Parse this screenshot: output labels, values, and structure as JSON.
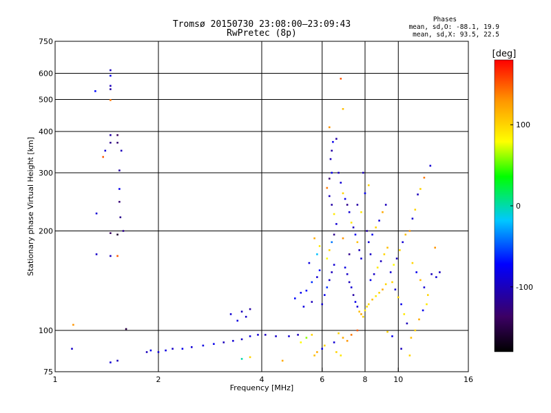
{
  "chart_data": {
    "type": "scatter",
    "title_line1": "Tromsø 20150730 23:08:00–23:09:43",
    "title_line2": "RwPretec (8p)",
    "phase_box": {
      "heading": "Phases",
      "line1": "mean, sd,O: -88.1, 19.9",
      "line2": "mean, sd,X:  93.5, 22.5"
    },
    "xlabel": "Frequency [MHz]",
    "ylabel": "Stationary phase Virtual Height [km]",
    "x_scale": "log",
    "y_scale": "log",
    "xlim": [
      1,
      16
    ],
    "ylim": [
      75,
      750
    ],
    "x_ticks": [
      1,
      2,
      4,
      6,
      8,
      10,
      16
    ],
    "y_ticks": [
      75,
      100,
      200,
      300,
      400,
      500,
      600,
      750
    ],
    "x_grid": [
      2,
      4,
      6,
      8,
      10
    ],
    "y_grid": [
      100,
      200,
      300,
      400,
      500,
      600
    ],
    "colorbar": {
      "label": "[deg]",
      "range": [
        -180,
        180
      ],
      "ticks": [
        100,
        0,
        -100
      ],
      "colors": [
        "#000000",
        "#3c0064",
        "#0000ff",
        "#00c8ff",
        "#00ff00",
        "#ffff00",
        "#ff9600",
        "#ff0000"
      ]
    },
    "points": [
      [
        1.12,
        88,
        -95
      ],
      [
        1.13,
        104,
        130
      ],
      [
        1.31,
        530,
        -70
      ],
      [
        1.32,
        226,
        -90
      ],
      [
        1.32,
        170,
        -95
      ],
      [
        1.38,
        335,
        150
      ],
      [
        1.4,
        350,
        -90
      ],
      [
        1.45,
        613,
        -100
      ],
      [
        1.45,
        590,
        -80
      ],
      [
        1.45,
        550,
        -100
      ],
      [
        1.45,
        537,
        -110
      ],
      [
        1.45,
        498,
        140
      ],
      [
        1.45,
        390,
        -110
      ],
      [
        1.45,
        370,
        -120
      ],
      [
        1.45,
        197,
        -140
      ],
      [
        1.45,
        168,
        -100
      ],
      [
        1.45,
        80,
        -90
      ],
      [
        1.52,
        390,
        -140
      ],
      [
        1.52,
        370,
        -130
      ],
      [
        1.52,
        195,
        -160
      ],
      [
        1.52,
        168,
        150
      ],
      [
        1.52,
        81,
        -100
      ],
      [
        1.54,
        305,
        -110
      ],
      [
        1.54,
        268,
        -80
      ],
      [
        1.54,
        245,
        -130
      ],
      [
        1.55,
        220,
        -120
      ],
      [
        1.56,
        350,
        -100
      ],
      [
        1.58,
        200,
        -120
      ],
      [
        1.61,
        101,
        -150
      ],
      [
        1.85,
        86,
        -100
      ],
      [
        1.9,
        87,
        -80
      ],
      [
        2.0,
        86,
        -90
      ],
      [
        2.1,
        87,
        -85
      ],
      [
        2.2,
        88,
        -95
      ],
      [
        2.35,
        88,
        -80
      ],
      [
        2.5,
        89,
        -90
      ],
      [
        2.7,
        90,
        -85
      ],
      [
        2.9,
        91,
        -80
      ],
      [
        3.1,
        92,
        -100
      ],
      [
        3.3,
        93,
        -90
      ],
      [
        3.5,
        94,
        -95
      ],
      [
        3.7,
        96,
        -85
      ],
      [
        3.9,
        97,
        -90
      ],
      [
        4.1,
        97,
        -100
      ],
      [
        4.4,
        96,
        -95
      ],
      [
        4.8,
        96,
        -90
      ],
      [
        5.1,
        97,
        -100
      ],
      [
        3.25,
        112,
        -90
      ],
      [
        3.5,
        114,
        -100
      ],
      [
        3.7,
        116,
        -110
      ],
      [
        3.4,
        107,
        -85
      ],
      [
        3.6,
        110,
        -95
      ],
      [
        3.5,
        82,
        0
      ],
      [
        3.7,
        83,
        100
      ],
      [
        4.6,
        81,
        120
      ],
      [
        5.2,
        92,
        80
      ],
      [
        5.4,
        95,
        60
      ],
      [
        5.6,
        97,
        100
      ],
      [
        5.2,
        130,
        -80
      ],
      [
        5.4,
        132,
        -70
      ],
      [
        5.6,
        140,
        -60
      ],
      [
        5.8,
        145,
        -90
      ],
      [
        5.9,
        152,
        -70
      ],
      [
        5.5,
        160,
        -85
      ],
      [
        5.8,
        170,
        -20
      ],
      [
        5.9,
        180,
        90
      ],
      [
        5.7,
        190,
        120
      ],
      [
        5.0,
        125,
        -70
      ],
      [
        5.3,
        118,
        -85
      ],
      [
        5.6,
        122,
        -100
      ],
      [
        6.0,
        120,
        -90
      ],
      [
        6.1,
        128,
        -80
      ],
      [
        6.2,
        135,
        -60
      ],
      [
        6.3,
        142,
        -95
      ],
      [
        6.4,
        150,
        -100
      ],
      [
        6.5,
        158,
        -90
      ],
      [
        6.2,
        165,
        80
      ],
      [
        6.3,
        175,
        100
      ],
      [
        6.4,
        185,
        -40
      ],
      [
        6.5,
        195,
        -120
      ],
      [
        6.6,
        210,
        -90
      ],
      [
        6.5,
        225,
        90
      ],
      [
        6.4,
        240,
        -110
      ],
      [
        6.3,
        255,
        -100
      ],
      [
        6.2,
        270,
        140
      ],
      [
        6.3,
        288,
        -130
      ],
      [
        6.4,
        300,
        -80
      ],
      [
        6.35,
        330,
        -100
      ],
      [
        6.4,
        350,
        -110
      ],
      [
        6.45,
        372,
        -80
      ],
      [
        6.3,
        412,
        130
      ],
      [
        6.8,
        578,
        150
      ],
      [
        6.9,
        468,
        110
      ],
      [
        6.6,
        380,
        -110
      ],
      [
        6.7,
        300,
        -100
      ],
      [
        6.8,
        280,
        -90
      ],
      [
        6.9,
        260,
        100
      ],
      [
        7.0,
        250,
        -80
      ],
      [
        7.1,
        240,
        -120
      ],
      [
        7.2,
        228,
        -90
      ],
      [
        7.3,
        212,
        90
      ],
      [
        7.4,
        205,
        -100
      ],
      [
        7.5,
        195,
        -80
      ],
      [
        7.6,
        185,
        110
      ],
      [
        7.7,
        175,
        -100
      ],
      [
        7.8,
        165,
        -90
      ],
      [
        7.0,
        155,
        -85
      ],
      [
        7.1,
        148,
        -95
      ],
      [
        7.2,
        140,
        -100
      ],
      [
        7.3,
        135,
        -90
      ],
      [
        7.4,
        128,
        -110
      ],
      [
        7.5,
        122,
        -80
      ],
      [
        7.6,
        118,
        -90
      ],
      [
        7.7,
        114,
        110
      ],
      [
        7.8,
        112,
        120
      ],
      [
        7.9,
        110,
        100
      ],
      [
        8.0,
        115,
        90
      ],
      [
        8.1,
        118,
        95
      ],
      [
        6.7,
        98,
        100
      ],
      [
        6.9,
        95,
        120
      ],
      [
        7.1,
        93,
        130
      ],
      [
        7.3,
        97,
        140
      ],
      [
        7.6,
        100,
        150
      ],
      [
        6.5,
        92,
        -90
      ],
      [
        6.6,
        86,
        100
      ],
      [
        6.8,
        84,
        90
      ],
      [
        5.7,
        84,
        110
      ],
      [
        5.8,
        86,
        120
      ],
      [
        6.0,
        88,
        -80
      ],
      [
        6.1,
        90,
        100
      ],
      [
        8.2,
        120,
        100
      ],
      [
        8.4,
        124,
        110
      ],
      [
        8.6,
        127,
        90
      ],
      [
        8.8,
        130,
        100
      ],
      [
        9.0,
        133,
        120
      ],
      [
        9.2,
        138,
        100
      ],
      [
        8.3,
        142,
        -80
      ],
      [
        8.5,
        148,
        -95
      ],
      [
        8.7,
        155,
        90
      ],
      [
        8.9,
        162,
        -100
      ],
      [
        9.1,
        170,
        100
      ],
      [
        9.3,
        178,
        110
      ],
      [
        8.2,
        185,
        -90
      ],
      [
        8.4,
        195,
        -80
      ],
      [
        8.6,
        205,
        100
      ],
      [
        8.8,
        215,
        -90
      ],
      [
        9.0,
        228,
        120
      ],
      [
        9.2,
        240,
        -100
      ],
      [
        8.0,
        260,
        -80
      ],
      [
        8.2,
        275,
        100
      ],
      [
        7.9,
        300,
        -100
      ],
      [
        7.6,
        240,
        -110
      ],
      [
        7.8,
        228,
        90
      ],
      [
        9.5,
        150,
        -90
      ],
      [
        9.7,
        158,
        80
      ],
      [
        9.9,
        165,
        -100
      ],
      [
        10.1,
        175,
        100
      ],
      [
        10.3,
        185,
        -90
      ],
      [
        10.5,
        195,
        110
      ],
      [
        9.6,
        140,
        100
      ],
      [
        9.8,
        133,
        -90
      ],
      [
        10.0,
        126,
        100
      ],
      [
        10.2,
        120,
        -80
      ],
      [
        10.4,
        112,
        90
      ],
      [
        10.6,
        105,
        -100
      ],
      [
        10.8,
        200,
        130
      ],
      [
        11.0,
        218,
        -90
      ],
      [
        11.2,
        232,
        100
      ],
      [
        11.4,
        258,
        -100
      ],
      [
        11.6,
        268,
        100
      ],
      [
        11.9,
        290,
        140
      ],
      [
        11.0,
        160,
        100
      ],
      [
        11.3,
        150,
        -80
      ],
      [
        11.6,
        142,
        110
      ],
      [
        11.9,
        135,
        -90
      ],
      [
        12.2,
        128,
        100
      ],
      [
        12.5,
        148,
        -100
      ],
      [
        10.9,
        95,
        110
      ],
      [
        11.2,
        100,
        100
      ],
      [
        11.5,
        108,
        120
      ],
      [
        11.8,
        115,
        -80
      ],
      [
        12.1,
        120,
        90
      ],
      [
        12.4,
        315,
        -90
      ],
      [
        12.8,
        178,
        130
      ],
      [
        13.2,
        150,
        -100
      ],
      [
        12.9,
        145,
        -90
      ],
      [
        10.2,
        88,
        -100
      ],
      [
        10.8,
        84,
        100
      ],
      [
        9.3,
        99,
        100
      ],
      [
        9.6,
        96,
        -80
      ],
      [
        8.1,
        200,
        -110
      ],
      [
        8.3,
        170,
        -95
      ],
      [
        7.2,
        170,
        -120
      ],
      [
        6.9,
        190,
        130
      ]
    ]
  }
}
